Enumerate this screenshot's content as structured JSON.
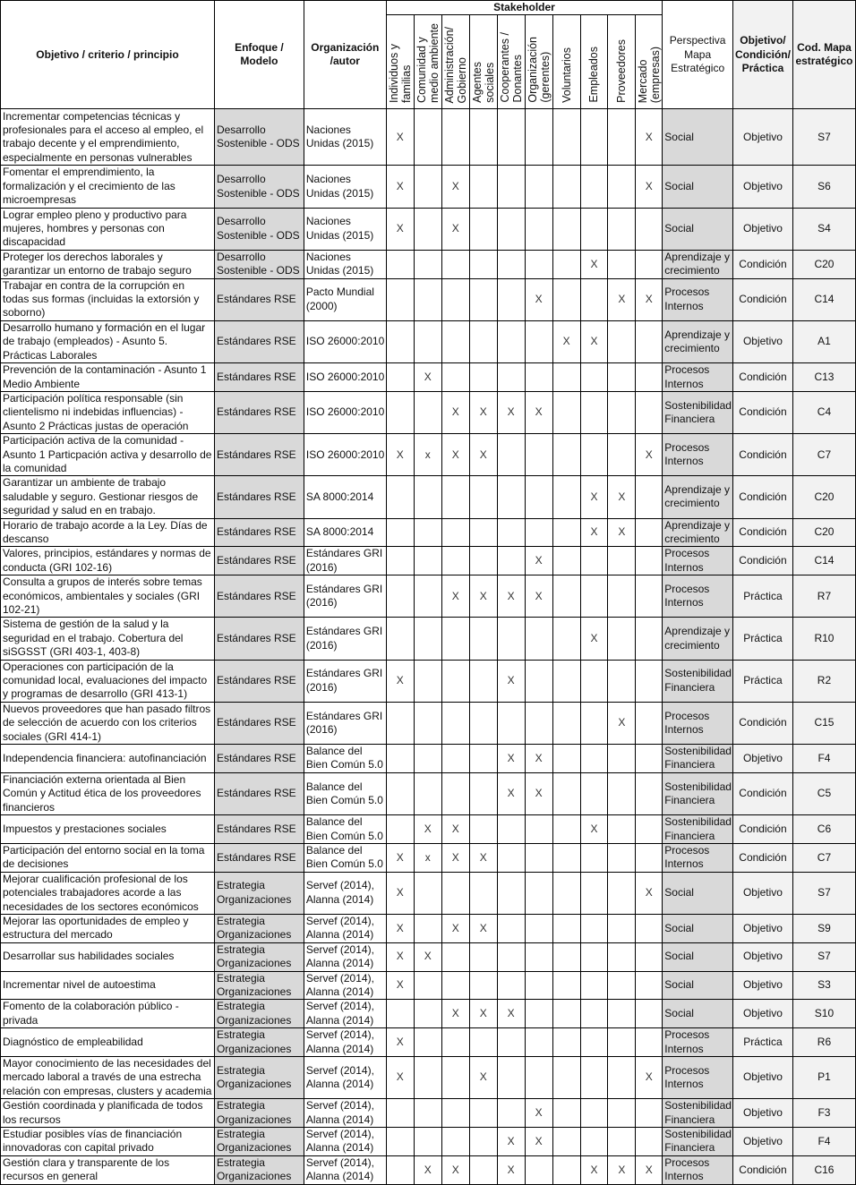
{
  "header": {
    "objetivo": "Objetivo / criterio / principio",
    "enfoque": "Enfoque / Modelo",
    "organizacion": "Organización /autor",
    "stakeholder": "Stakeholder",
    "stakeholders": [
      "Individuos y\nfamilias",
      "Comunidad y\nmedio ambiente",
      "Administración/\nGobierno",
      "Agentes\nsociales",
      "Cooperantes /\nDonantes",
      "Organización\n(gerentes)",
      "Voluntarios",
      "Empleados",
      "Proveedores",
      "Mercado\n(empresas)"
    ],
    "perspectiva": "Perspectiva Mapa Estratégico",
    "tipo": "Objetivo/ Condición/ Práctica",
    "cod": "Cod. Mapa estratégico"
  },
  "colors": {
    "enfoque_bg": "#d9d9d9",
    "perspectiva_bg": "#d9d9d9",
    "tipo_cod_bg": "#f2f2f2",
    "border": "#000000"
  },
  "rows": [
    {
      "objetivo": "Incrementar competencias técnicas y profesionales para el acceso al empleo, el trabajo decente y el emprendimiento, especialmente en personas vulnerables",
      "enfoque": "Desarrollo Sostenible - ODS",
      "organizacion": "Naciones Unidas (2015)",
      "marks": [
        "X",
        "",
        "",
        "",
        "",
        "",
        "",
        "",
        "",
        "X"
      ],
      "perspectiva": "Social",
      "tipo": "Objetivo",
      "cod": "S7"
    },
    {
      "objetivo": "Fomentar el emprendimiento, la formalización y el crecimiento de las microempresas",
      "enfoque": "Desarrollo Sostenible - ODS",
      "organizacion": "Naciones Unidas (2015)",
      "marks": [
        "X",
        "",
        "X",
        "",
        "",
        "",
        "",
        "",
        "",
        "X"
      ],
      "perspectiva": "Social",
      "tipo": "Objetivo",
      "cod": "S6"
    },
    {
      "objetivo": "Lograr empleo pleno y productivo para mujeres, hombres y personas con discapacidad",
      "enfoque": "Desarrollo Sostenible - ODS",
      "organizacion": "Naciones Unidas (2015)",
      "marks": [
        "X",
        "",
        "X",
        "",
        "",
        "",
        "",
        "",
        "",
        ""
      ],
      "perspectiva": "Social",
      "tipo": "Objetivo",
      "cod": "S4"
    },
    {
      "objetivo": "Proteger los derechos laborales y garantizar un entorno de trabajo seguro",
      "enfoque": "Desarrollo Sostenible - ODS",
      "organizacion": "Naciones Unidas (2015)",
      "marks": [
        "",
        "",
        "",
        "",
        "",
        "",
        "",
        "X",
        "",
        ""
      ],
      "perspectiva": "Aprendizaje y crecimiento",
      "tipo": "Condición",
      "cod": "C20"
    },
    {
      "objetivo": "Trabajar en contra de la corrupción en todas sus formas (incluidas la extorsión y soborno)",
      "enfoque": "Estándares RSE",
      "organizacion": "Pacto Mundial (2000)",
      "marks": [
        "",
        "",
        "",
        "",
        "",
        "X",
        "",
        "",
        "X",
        "X"
      ],
      "perspectiva": "Procesos Internos",
      "tipo": "Condición",
      "cod": "C14"
    },
    {
      "objetivo": "Desarrollo humano y formación en el lugar de trabajo (empleados) - Asunto 5. Prácticas Laborales",
      "enfoque": "Estándares RSE",
      "organizacion": "ISO 26000:2010",
      "marks": [
        "",
        "",
        "",
        "",
        "",
        "",
        "X",
        "X",
        "",
        ""
      ],
      "perspectiva": "Aprendizaje y crecimiento",
      "tipo": "Objetivo",
      "cod": "A1"
    },
    {
      "objetivo": "Prevención de la contaminación - Asunto 1 Medio Ambiente",
      "enfoque": "Estándares RSE",
      "organizacion": "ISO 26000:2010",
      "marks": [
        "",
        "X",
        "",
        "",
        "",
        "",
        "",
        "",
        "",
        ""
      ],
      "perspectiva": "Procesos Internos",
      "tipo": "Condición",
      "cod": "C13"
    },
    {
      "objetivo": "Participación política responsable (sin clientelismo ni indebidas influencias)  - Asunto 2 Prácticas justas de operación",
      "enfoque": "Estándares RSE",
      "organizacion": "ISO 26000:2010",
      "marks": [
        "",
        "",
        "X",
        "X",
        "X",
        "X",
        "",
        "",
        "",
        ""
      ],
      "perspectiva": "Sostenibilidad Financiera",
      "tipo": "Condición",
      "cod": "C4"
    },
    {
      "objetivo": "Participación activa de la comunidad - Asunto 1 Particpación activa y desarrollo de la comunidad",
      "enfoque": "Estándares RSE",
      "organizacion": "ISO 26000:2010",
      "marks": [
        "X",
        "x",
        "X",
        "X",
        "",
        "",
        "",
        "",
        "",
        "X"
      ],
      "perspectiva": "Procesos Internos",
      "tipo": "Condición",
      "cod": "C7"
    },
    {
      "objetivo": "Garantizar un ambiente de trabajo saludable y seguro. Gestionar riesgos de seguridad y salud en en trabajo.",
      "enfoque": "Estándares RSE",
      "organizacion": "SA 8000:2014",
      "marks": [
        "",
        "",
        "",
        "",
        "",
        "",
        "",
        "X",
        "X",
        ""
      ],
      "perspectiva": "Aprendizaje y crecimiento",
      "tipo": "Condición",
      "cod": "C20"
    },
    {
      "objetivo": "Horario de trabajo acorde a la Ley. Días de descanso",
      "enfoque": "Estándares RSE",
      "organizacion": "SA 8000:2014",
      "marks": [
        "",
        "",
        "",
        "",
        "",
        "",
        "",
        "X",
        "X",
        ""
      ],
      "perspectiva": "Aprendizaje y crecimiento",
      "tipo": "Condición",
      "cod": "C20"
    },
    {
      "objetivo": "Valores, principios, estándares y normas de conducta (GRI 102-16)",
      "enfoque": "Estándares RSE",
      "organizacion": "Estándares GRI (2016)",
      "marks": [
        "",
        "",
        "",
        "",
        "",
        "X",
        "",
        "",
        "",
        ""
      ],
      "perspectiva": "Procesos Internos",
      "tipo": "Condición",
      "cod": "C14"
    },
    {
      "objetivo": "Consulta a grupos de interés sobre temas económicos, ambientales y sociales (GRI 102-21)",
      "enfoque": "Estándares RSE",
      "organizacion": "Estándares GRI (2016)",
      "marks": [
        "",
        "",
        "X",
        "X",
        "X",
        "X",
        "",
        "",
        "",
        ""
      ],
      "perspectiva": "Procesos Internos",
      "tipo": "Práctica",
      "cod": "R7"
    },
    {
      "objetivo": "Sistema de gestión de la salud y la seguridad en el trabajo. Cobertura del siSGSST (GRI 403-1, 403-8)",
      "enfoque": "Estándares RSE",
      "organizacion": "Estándares GRI (2016)",
      "marks": [
        "",
        "",
        "",
        "",
        "",
        "",
        "",
        "X",
        "",
        ""
      ],
      "perspectiva": "Aprendizaje y crecimiento",
      "tipo": "Práctica",
      "cod": "R10"
    },
    {
      "objetivo": "Operaciones con participación de la comunidad local, evaluaciones del impacto y programas de desarrollo (GRI 413-1)",
      "enfoque": "Estándares RSE",
      "organizacion": "Estándares GRI (2016)",
      "marks": [
        "X",
        "",
        "",
        "",
        "X",
        "",
        "",
        "",
        "",
        ""
      ],
      "perspectiva": "Sostenibilidad Financiera",
      "tipo": "Práctica",
      "cod": "R2"
    },
    {
      "objetivo": "Nuevos proveedores que han pasado filtros de selección de acuerdo con los criterios sociales (GRI 414-1)",
      "enfoque": "Estándares RSE",
      "organizacion": "Estándares GRI (2016)",
      "marks": [
        "",
        "",
        "",
        "",
        "",
        "",
        "",
        "",
        "X",
        ""
      ],
      "perspectiva": "Procesos Internos",
      "tipo": "Condición",
      "cod": "C15"
    },
    {
      "objetivo": "Independencia financiera: autofinanciación",
      "enfoque": "Estándares RSE",
      "organizacion": "Balance del Bien Común 5.0",
      "marks": [
        "",
        "",
        "",
        "",
        "X",
        "X",
        "",
        "",
        "",
        ""
      ],
      "perspectiva": "Sostenibilidad Financiera",
      "tipo": "Objetivo",
      "cod": "F4"
    },
    {
      "objetivo": "Financiación externa orientada al Bien Común y Actitud ética de los proveedores financieros",
      "enfoque": "Estándares RSE",
      "organizacion": "Balance del Bien Común 5.0",
      "marks": [
        "",
        "",
        "",
        "",
        "X",
        "X",
        "",
        "",
        "",
        ""
      ],
      "perspectiva": "Sostenibilidad Financiera",
      "tipo": "Condición",
      "cod": "C5"
    },
    {
      "objetivo": "Impuestos y prestaciones sociales",
      "enfoque": "Estándares RSE",
      "organizacion": "Balance del Bien Común 5.0",
      "marks": [
        "",
        "X",
        "X",
        "",
        "",
        "",
        "",
        "X",
        "",
        ""
      ],
      "perspectiva": "Sostenibilidad Financiera",
      "tipo": "Condición",
      "cod": "C6"
    },
    {
      "objetivo": "Participación del entorno social en la toma de decisiones",
      "enfoque": "Estándares RSE",
      "organizacion": "Balance del Bien Común 5.0",
      "marks": [
        "X",
        "x",
        "X",
        "X",
        "",
        "",
        "",
        "",
        "",
        ""
      ],
      "perspectiva": "Procesos Internos",
      "tipo": "Condición",
      "cod": "C7"
    },
    {
      "objetivo": "Mejorar cualificación profesional de los potenciales trabajadores acorde a las necesidades de los sectores económicos",
      "enfoque": "Estrategia Organizaciones",
      "organizacion": "Servef (2014), Alanna (2014)",
      "marks": [
        "X",
        "",
        "",
        "",
        "",
        "",
        "",
        "",
        "",
        "X"
      ],
      "perspectiva": "Social",
      "tipo": "Objetivo",
      "cod": "S7"
    },
    {
      "objetivo": "Mejorar las oportunidades de empleo y estructura del mercado",
      "enfoque": "Estrategia Organizaciones",
      "organizacion": "Servef (2014), Alanna (2014)",
      "marks": [
        "X",
        "",
        "X",
        "X",
        "",
        "",
        "",
        "",
        "",
        ""
      ],
      "perspectiva": "Social",
      "tipo": "Objetivo",
      "cod": "S9"
    },
    {
      "objetivo": "Desarrollar sus habilidades sociales",
      "enfoque": "Estrategia Organizaciones",
      "organizacion": "Servef (2014), Alanna (2014)",
      "marks": [
        "X",
        "X",
        "",
        "",
        "",
        "",
        "",
        "",
        "",
        ""
      ],
      "perspectiva": "Social",
      "tipo": "Objetivo",
      "cod": "S7"
    },
    {
      "objetivo": "Incrementar nivel de autoestima",
      "enfoque": "Estrategia Organizaciones",
      "organizacion": "Servef (2014), Alanna (2014)",
      "marks": [
        "X",
        "",
        "",
        "",
        "",
        "",
        "",
        "",
        "",
        ""
      ],
      "perspectiva": "Social",
      "tipo": "Objetivo",
      "cod": "S3"
    },
    {
      "objetivo": "Fomento de la colaboración público - privada",
      "enfoque": "Estrategia Organizaciones",
      "organizacion": "Servef (2014), Alanna (2014)",
      "marks": [
        "",
        "",
        "X",
        "X",
        "X",
        "",
        "",
        "",
        "",
        ""
      ],
      "perspectiva": "Social",
      "tipo": "Objetivo",
      "cod": "S10"
    },
    {
      "objetivo": "Diagnóstico de empleabilidad",
      "enfoque": "Estrategia Organizaciones",
      "organizacion": "Servef (2014), Alanna (2014)",
      "marks": [
        "X",
        "",
        "",
        "",
        "",
        "",
        "",
        "",
        "",
        ""
      ],
      "perspectiva": "Procesos Internos",
      "tipo": "Práctica",
      "cod": "R6"
    },
    {
      "objetivo": "Mayor conocimiento de las necesidades del mercado laboral a través de una estrecha relación con empresas, clusters y academia",
      "enfoque": "Estrategia Organizaciones",
      "organizacion": "Servef (2014), Alanna (2014)",
      "marks": [
        "X",
        "",
        "",
        "X",
        "",
        "",
        "",
        "",
        "",
        "X"
      ],
      "perspectiva": "Procesos Internos",
      "tipo": "Objetivo",
      "cod": "P1"
    },
    {
      "objetivo": "Gestión coordinada y planificada de todos los recursos",
      "enfoque": "Estrategia Organizaciones",
      "organizacion": "Servef (2014), Alanna (2014)",
      "marks": [
        "",
        "",
        "",
        "",
        "",
        "X",
        "",
        "",
        "",
        ""
      ],
      "perspectiva": "Sostenibilidad Financiera",
      "tipo": "Objetivo",
      "cod": "F3"
    },
    {
      "objetivo": "Estudiar posibles vías de financiación innovadoras con capital privado",
      "enfoque": "Estrategia Organizaciones",
      "organizacion": "Servef (2014), Alanna (2014)",
      "marks": [
        "",
        "",
        "",
        "",
        "X",
        "X",
        "",
        "",
        "",
        ""
      ],
      "perspectiva": "Sostenibilidad Financiera",
      "tipo": "Objetivo",
      "cod": "F4"
    },
    {
      "objetivo": "Gestión clara y transparente de los recursos en general",
      "enfoque": "Estrategia Organizaciones",
      "organizacion": "Servef (2014), Alanna (2014)",
      "marks": [
        "",
        "X",
        "X",
        "",
        "X",
        "",
        "",
        "X",
        "X",
        "X"
      ],
      "perspectiva": "Procesos Internos",
      "tipo": "Condición",
      "cod": "C16"
    }
  ]
}
